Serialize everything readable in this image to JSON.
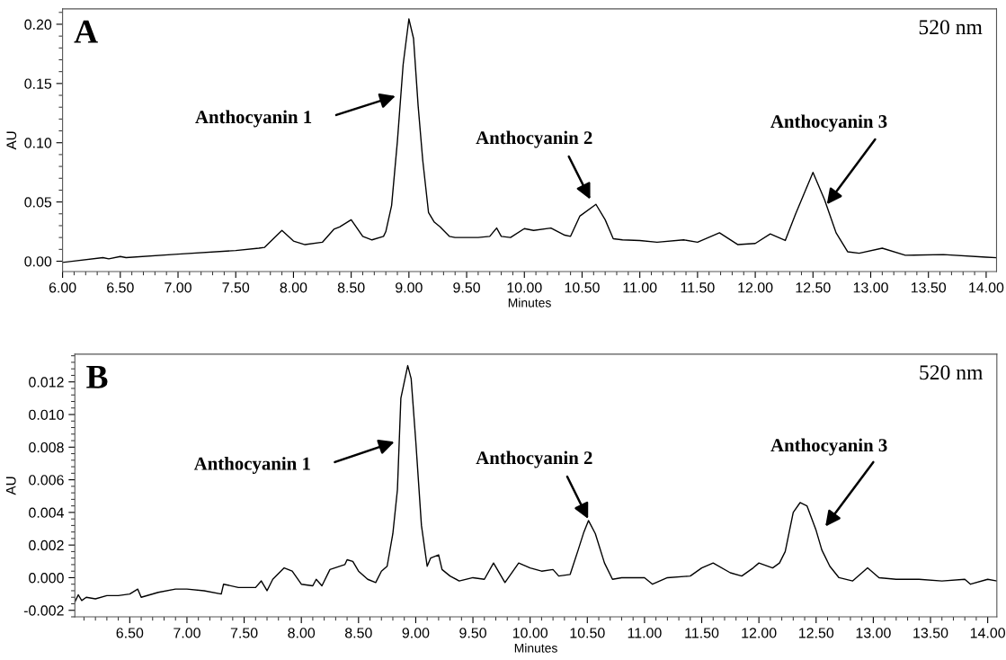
{
  "chart_data": [
    {
      "type": "line",
      "xlabel": "Minutes",
      "ylabel": "AU",
      "xlim": [
        6.0,
        14.09
      ],
      "ylim": [
        -0.0087,
        0.213
      ],
      "xticks": [
        {
          "value": 6.0,
          "label": "6.00"
        },
        {
          "value": 6.5,
          "label": "6.50"
        },
        {
          "value": 7.0,
          "label": "7.00"
        },
        {
          "value": 7.5,
          "label": "7.50"
        },
        {
          "value": 8.0,
          "label": "8.00"
        },
        {
          "value": 8.5,
          "label": "8.50"
        },
        {
          "value": 9.0,
          "label": "9.00"
        },
        {
          "value": 9.5,
          "label": "9.50"
        },
        {
          "value": 10.0,
          "label": "10.00"
        },
        {
          "value": 10.5,
          "label": "10.50"
        },
        {
          "value": 11.0,
          "label": "11.00"
        },
        {
          "value": 11.5,
          "label": "11.50"
        },
        {
          "value": 12.0,
          "label": "12.00"
        },
        {
          "value": 12.5,
          "label": "12.50"
        },
        {
          "value": 13.0,
          "label": "13.00"
        },
        {
          "value": 13.5,
          "label": "13.50"
        },
        {
          "value": 14.0,
          "label": "14.00"
        }
      ],
      "yticks": [
        {
          "value": 0.0,
          "label": "0.00"
        },
        {
          "value": 0.05,
          "label": "0.05"
        },
        {
          "value": 0.1,
          "label": "0.10"
        },
        {
          "value": 0.15,
          "label": "0.15"
        },
        {
          "value": 0.2,
          "label": "0.20"
        }
      ],
      "grid": false,
      "legend": false,
      "marker": "none",
      "line_style": "solid",
      "annotations": [
        "A",
        "520 nm",
        "Anthocyanin 1",
        "Anthocyanin 2",
        {
          "text": "Anthocyanin 3",
          "x": 12.62,
          "y": 0.048
        }
      ],
      "series": [
        {
          "color": "#000000",
          "x": [
            6.0,
            6.35,
            6.4,
            6.5,
            6.55,
            7.0,
            7.5,
            7.7,
            7.75,
            7.9,
            8.0,
            8.1,
            8.25,
            8.35,
            8.4,
            8.5,
            8.6,
            8.68,
            8.78,
            8.8,
            8.85,
            8.9,
            8.95,
            9.0,
            9.04,
            9.08,
            9.12,
            9.17,
            9.22,
            9.27,
            9.35,
            9.4,
            9.6,
            9.7,
            9.76,
            9.8,
            9.88,
            10.0,
            10.08,
            10.23,
            10.35,
            10.4,
            10.48,
            10.62,
            10.7,
            10.77,
            10.85,
            11.0,
            11.15,
            11.38,
            11.5,
            11.69,
            11.85,
            12.0,
            12.13,
            12.26,
            12.35,
            12.5,
            12.6,
            12.7,
            12.8,
            12.9,
            13.1,
            13.3,
            13.63,
            14.0,
            14.09
          ],
          "values": [
            -0.001,
            0.003,
            0.002,
            0.004,
            0.003,
            0.006,
            0.009,
            0.011,
            0.0117,
            0.026,
            0.017,
            0.014,
            0.016,
            0.027,
            0.029,
            0.035,
            0.021,
            0.018,
            0.021,
            0.025,
            0.047,
            0.101,
            0.166,
            0.2045,
            0.188,
            0.131,
            0.085,
            0.041,
            0.033,
            0.029,
            0.021,
            0.02,
            0.02,
            0.021,
            0.028,
            0.021,
            0.02,
            0.0275,
            0.026,
            0.028,
            0.022,
            0.021,
            0.038,
            0.048,
            0.035,
            0.019,
            0.018,
            0.0175,
            0.016,
            0.018,
            0.016,
            0.024,
            0.014,
            0.015,
            0.023,
            0.0175,
            0.04,
            0.075,
            0.052,
            0.024,
            0.008,
            0.0067,
            0.011,
            0.005,
            0.0056,
            0.0034,
            0.003
          ]
        }
      ]
    },
    {
      "type": "line",
      "xlabel": "Minutes",
      "ylabel": "AU",
      "xlim": [
        6.02,
        14.08
      ],
      "ylim": [
        -0.0024,
        0.0137
      ],
      "xticks": [
        {
          "value": 6.5,
          "label": "6.50"
        },
        {
          "value": 7.0,
          "label": "7.00"
        },
        {
          "value": 7.5,
          "label": "7.50"
        },
        {
          "value": 8.0,
          "label": "8.00"
        },
        {
          "value": 8.5,
          "label": "8.50"
        },
        {
          "value": 9.0,
          "label": "9.00"
        },
        {
          "value": 9.5,
          "label": "9.50"
        },
        {
          "value": 10.0,
          "label": "10.00"
        },
        {
          "value": 10.5,
          "label": "10.50"
        },
        {
          "value": 11.0,
          "label": "11.00"
        },
        {
          "value": 11.5,
          "label": "11.50"
        },
        {
          "value": 12.0,
          "label": "12.00"
        },
        {
          "value": 12.5,
          "label": "12.50"
        },
        {
          "value": 13.0,
          "label": "13.00"
        },
        {
          "value": 13.5,
          "label": "13.50"
        },
        {
          "value": 14.0,
          "label": "14.00"
        }
      ],
      "yticks": [
        {
          "value": -0.002,
          "label": "-0.002"
        },
        {
          "value": 0.0,
          "label": "0.000"
        },
        {
          "value": 0.002,
          "label": "0.002"
        },
        {
          "value": 0.004,
          "label": "0.004"
        },
        {
          "value": 0.006,
          "label": "0.006"
        },
        {
          "value": 0.008,
          "label": "0.008"
        },
        {
          "value": 0.01,
          "label": "0.010"
        },
        {
          "value": 0.012,
          "label": "0.012"
        }
      ],
      "grid": false,
      "legend": false,
      "marker": "none",
      "line_style": "solid",
      "annotations": [
        "B",
        "520 nm",
        "Anthocyanin 1",
        "Anthocyanin 2",
        "Anthocyanin 3"
      ],
      "series": [
        {
          "color": "#000000",
          "x": [
            6.02,
            6.05,
            6.08,
            6.12,
            6.2,
            6.3,
            6.4,
            6.5,
            6.57,
            6.6,
            6.75,
            6.9,
            7.0,
            7.15,
            7.3,
            7.32,
            7.45,
            7.6,
            7.65,
            7.7,
            7.75,
            7.85,
            7.92,
            8.0,
            8.1,
            8.13,
            8.18,
            8.25,
            8.38,
            8.4,
            8.45,
            8.5,
            8.58,
            8.65,
            8.7,
            8.75,
            8.8,
            8.84,
            8.87,
            8.93,
            8.96,
            9.0,
            9.05,
            9.1,
            9.13,
            9.2,
            9.23,
            9.3,
            9.38,
            9.5,
            9.6,
            9.68,
            9.78,
            9.9,
            10.0,
            10.1,
            10.2,
            10.25,
            10.35,
            10.42,
            10.47,
            10.51,
            10.57,
            10.65,
            10.72,
            10.8,
            11.0,
            11.07,
            11.2,
            11.4,
            11.5,
            11.6,
            11.75,
            11.85,
            11.95,
            12.0,
            12.12,
            12.18,
            12.23,
            12.3,
            12.36,
            12.42,
            12.5,
            12.55,
            12.62,
            12.7,
            12.82,
            12.95,
            13.05,
            13.2,
            13.4,
            13.6,
            13.8,
            13.85,
            14.0,
            14.08
          ],
          "values": [
            -0.0015,
            -0.00105,
            -0.0014,
            -0.0012,
            -0.0013,
            -0.0011,
            -0.0011,
            -0.001,
            -0.0007,
            -0.0012,
            -0.0009,
            -0.0007,
            -0.0007,
            -0.0008,
            -0.001,
            -0.0004,
            -0.0006,
            -0.0006,
            -0.0002,
            -0.0008,
            -0.0001,
            0.0006,
            0.0004,
            -0.0004,
            -0.0005,
            -0.0001,
            -0.0005,
            0.0005,
            0.0008,
            0.0011,
            0.001,
            0.0004,
            -0.0001,
            -0.0003,
            0.0004,
            0.0007,
            0.0027,
            0.0054,
            0.011,
            0.013,
            0.0122,
            0.0084,
            0.0032,
            0.0007,
            0.0012,
            0.0014,
            0.0005,
            0.0001,
            -0.0002,
            0.0,
            -0.0001,
            0.0009,
            -0.0003,
            0.0009,
            0.0006,
            0.0004,
            0.0005,
            0.0001,
            0.0002,
            0.0017,
            0.0028,
            0.0035,
            0.0027,
            0.0009,
            -0.0001,
            0.0,
            0.0,
            -0.0004,
            0.0,
            0.0001,
            0.0006,
            0.0009,
            0.0003,
            0.0001,
            0.0006,
            0.0009,
            0.0006,
            0.0009,
            0.0016,
            0.004,
            0.0046,
            0.0044,
            0.0029,
            0.0017,
            0.0007,
            0.0,
            -0.0002,
            0.0006,
            0.0,
            -0.0001,
            -0.0001,
            -0.0002,
            -0.0001,
            -0.0004,
            -0.0001,
            -0.0002
          ]
        }
      ]
    }
  ]
}
